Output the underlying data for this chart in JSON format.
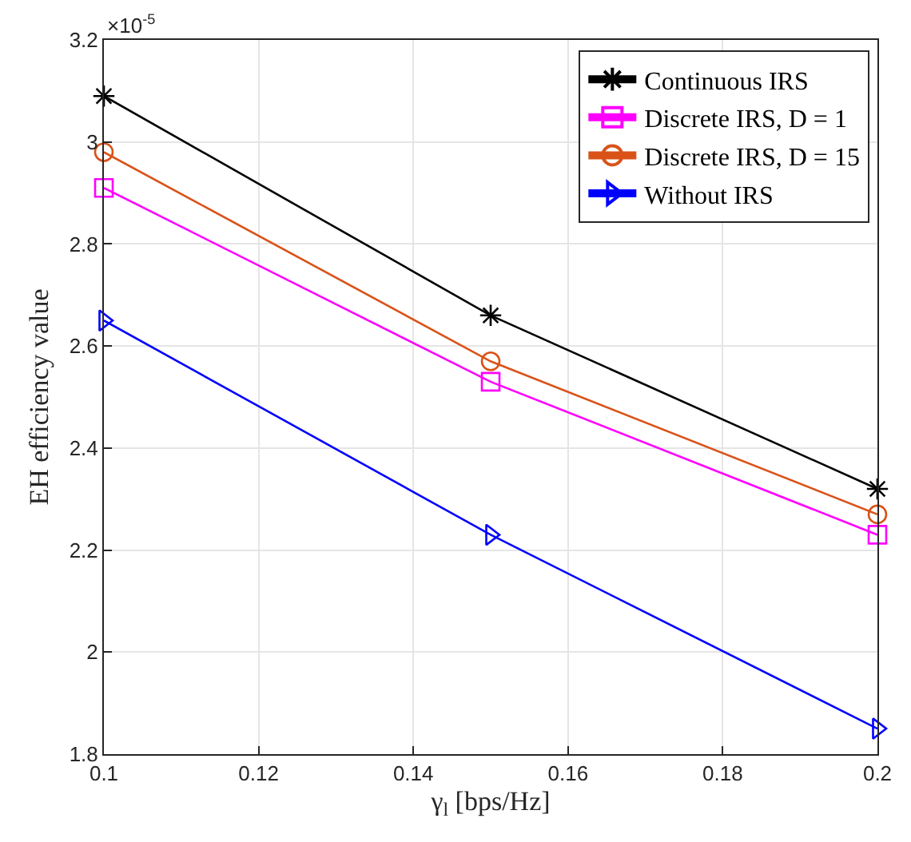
{
  "chart_data": {
    "type": "line",
    "xlabel": "γ$_{l}$ [bps/Hz]",
    "ylabel": "EH efficiency value",
    "x": [
      0.1,
      0.15,
      0.2
    ],
    "series": [
      {
        "name": "Continuous IRS",
        "color": "#000000",
        "marker": "cross",
        "values": [
          3.09,
          2.66,
          2.32
        ]
      },
      {
        "name": "Discrete IRS, D = 1",
        "color": "#ff00ff",
        "marker": "square",
        "values": [
          2.91,
          2.53,
          2.23
        ]
      },
      {
        "name": "Discrete IRS, D = 15",
        "color": "#d95319",
        "marker": "circle",
        "values": [
          2.98,
          2.57,
          2.27
        ]
      },
      {
        "name": "Without IRS",
        "color": "#0000ff",
        "marker": "triangle",
        "values": [
          2.65,
          2.23,
          1.85
        ]
      }
    ],
    "xlim": [
      0.1,
      0.2
    ],
    "xticks": [
      0.1,
      0.12,
      0.14,
      0.16,
      0.18,
      0.2
    ],
    "ylim": [
      1.8,
      3.2
    ],
    "yticks": [
      1.8,
      2,
      2.2,
      2.4,
      2.6,
      2.8,
      3,
      3.2
    ],
    "annotations": [
      "×10$^{-5}$"
    ],
    "grid": true,
    "legend": "top right",
    "line_style": "solid"
  }
}
